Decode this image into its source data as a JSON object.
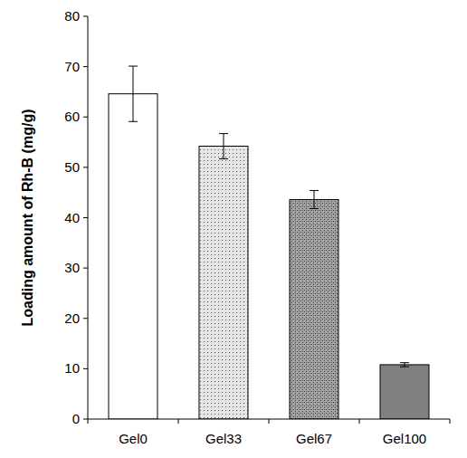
{
  "chart_data": {
    "type": "bar",
    "y_label": "Loading amount of Rh-B (mg/g)",
    "categories": [
      "Gel0",
      "Gel33",
      "Gel67",
      "Gel100"
    ],
    "values": [
      64.6,
      54.2,
      43.6,
      10.8
    ],
    "errors": [
      5.5,
      2.5,
      1.8,
      0.4
    ],
    "colors": [
      "#ffffff",
      "#e6e6e6",
      "#a6a6a6",
      "#808080"
    ],
    "ylim": [
      0,
      80
    ],
    "yticks": [
      0,
      10,
      20,
      30,
      40,
      50,
      60,
      70,
      80
    ],
    "grid": false
  }
}
